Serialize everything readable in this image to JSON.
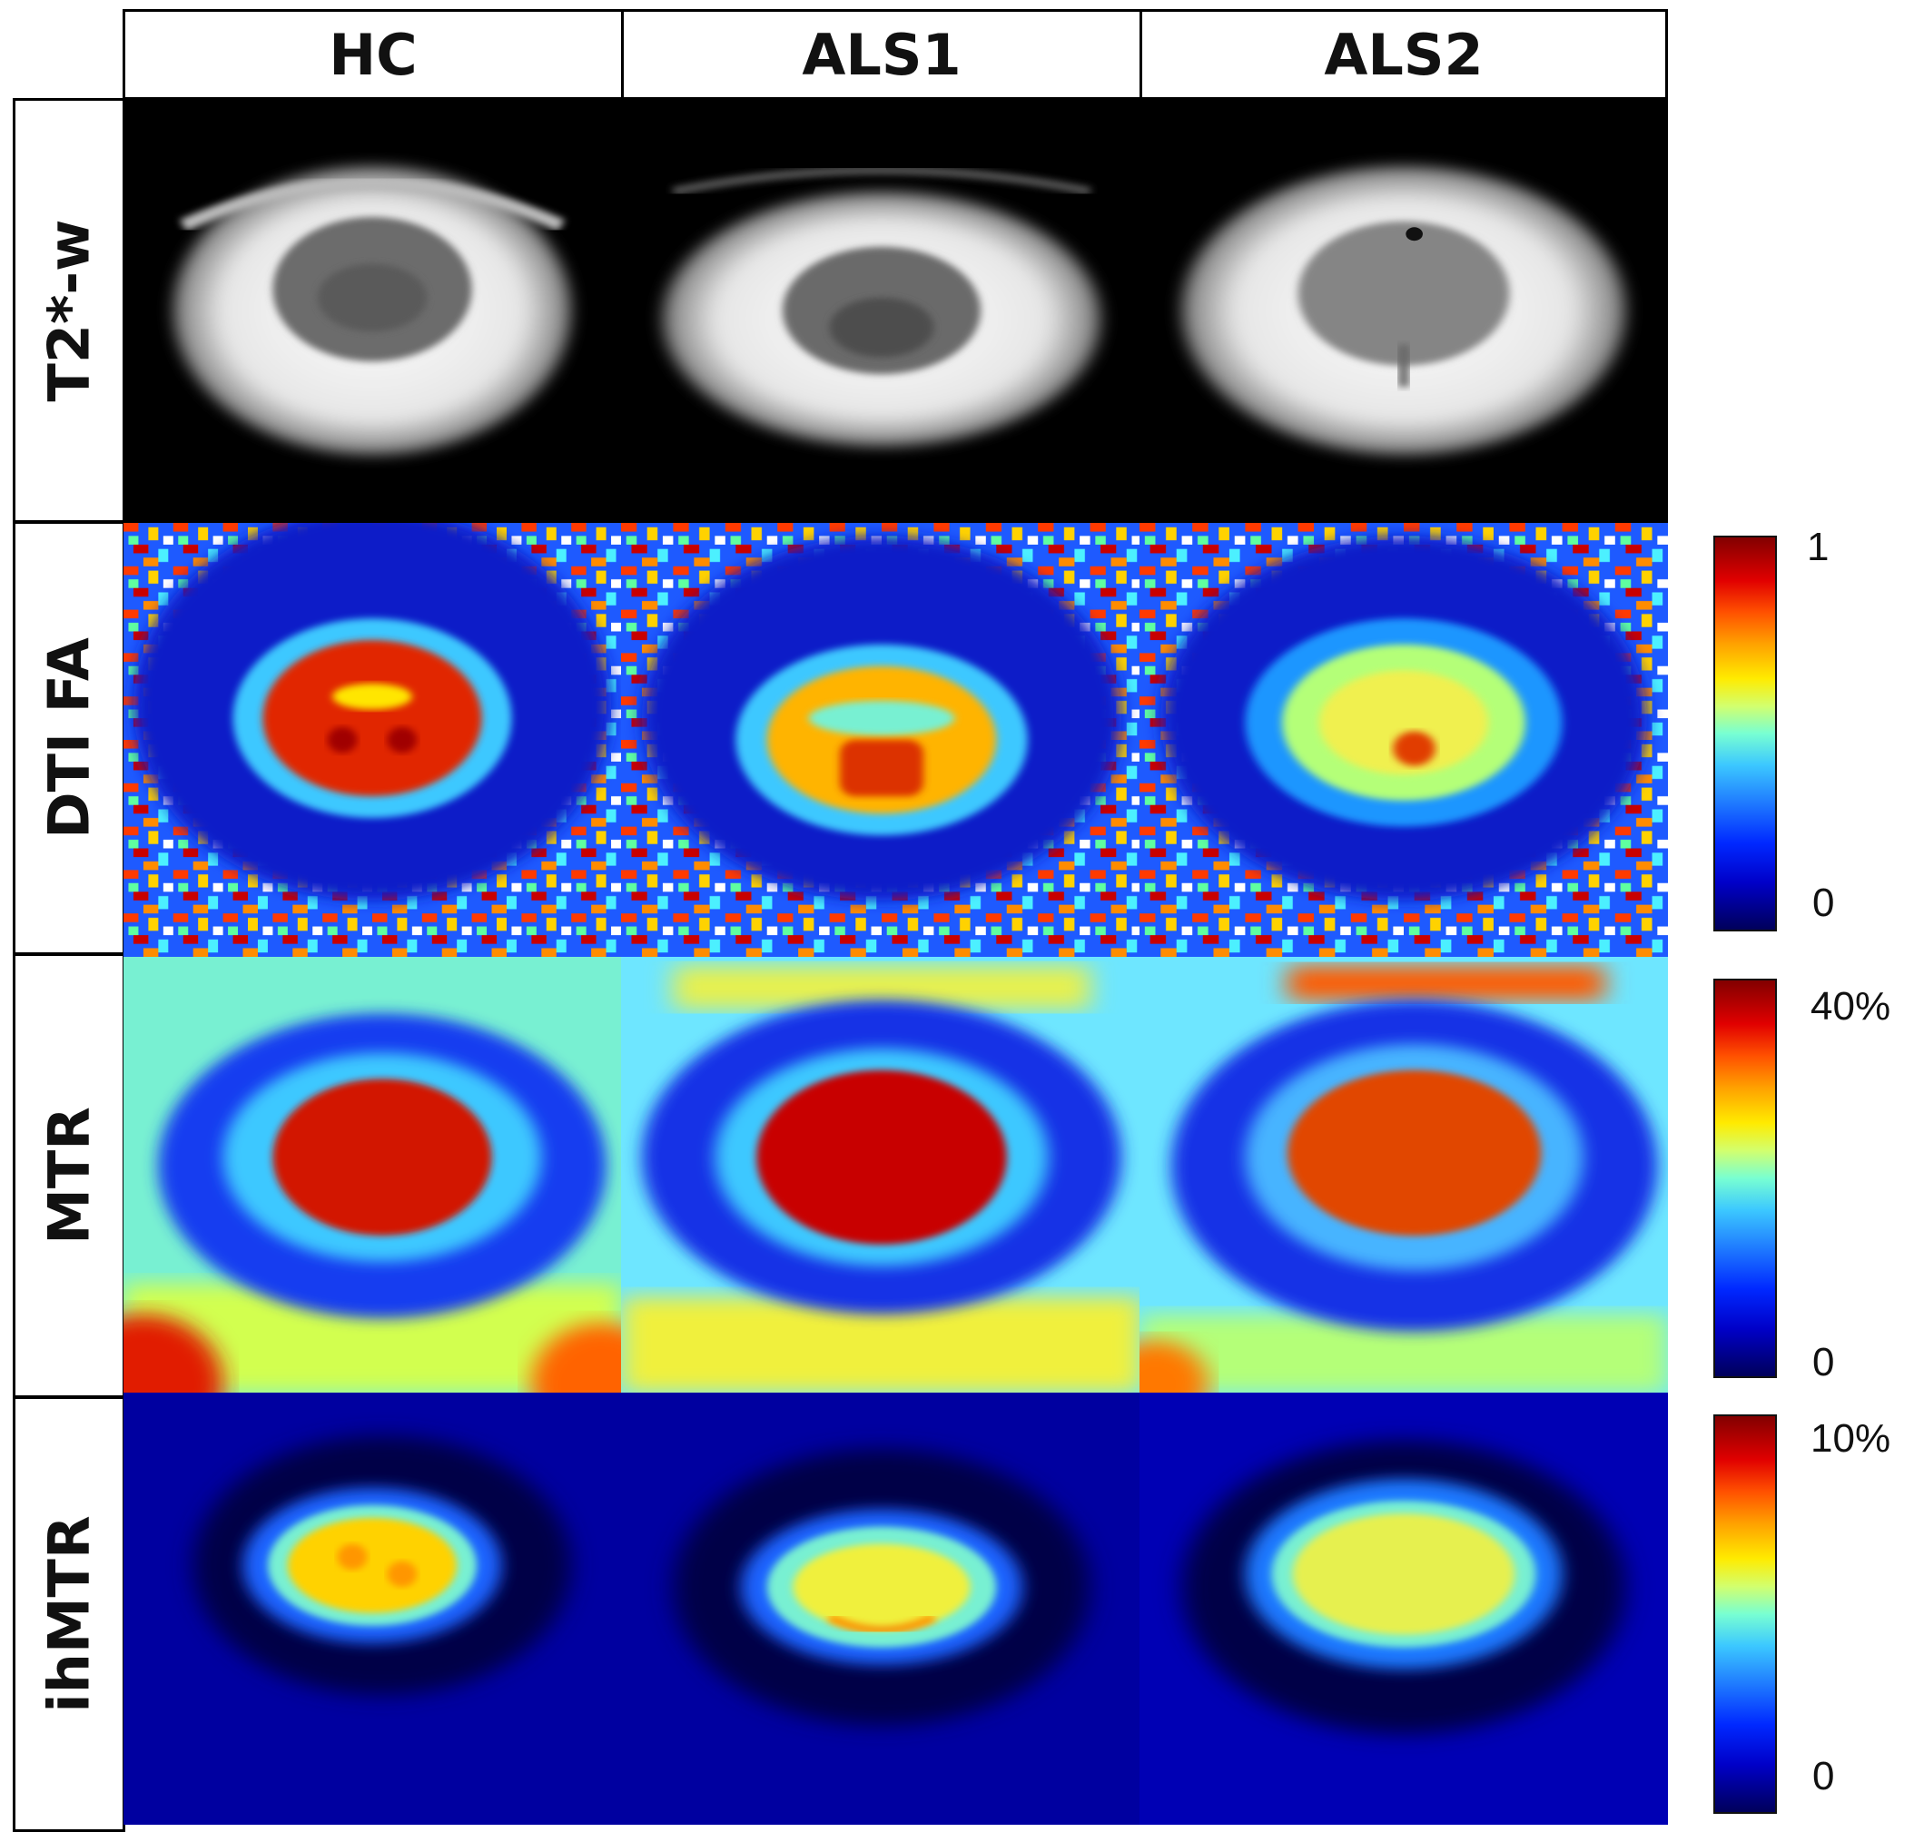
{
  "columns": [
    "HC",
    "ALS1",
    "ALS2"
  ],
  "rows": [
    "T2*-w",
    "DTI FA",
    "MTR",
    "ihMTR"
  ],
  "colorbars": {
    "fa": {
      "max": "1",
      "min": "0"
    },
    "mtr": {
      "max": "40%",
      "min": "0"
    },
    "ihmtr": {
      "max": "10%",
      "min": "0"
    }
  },
  "colormap": "jet"
}
